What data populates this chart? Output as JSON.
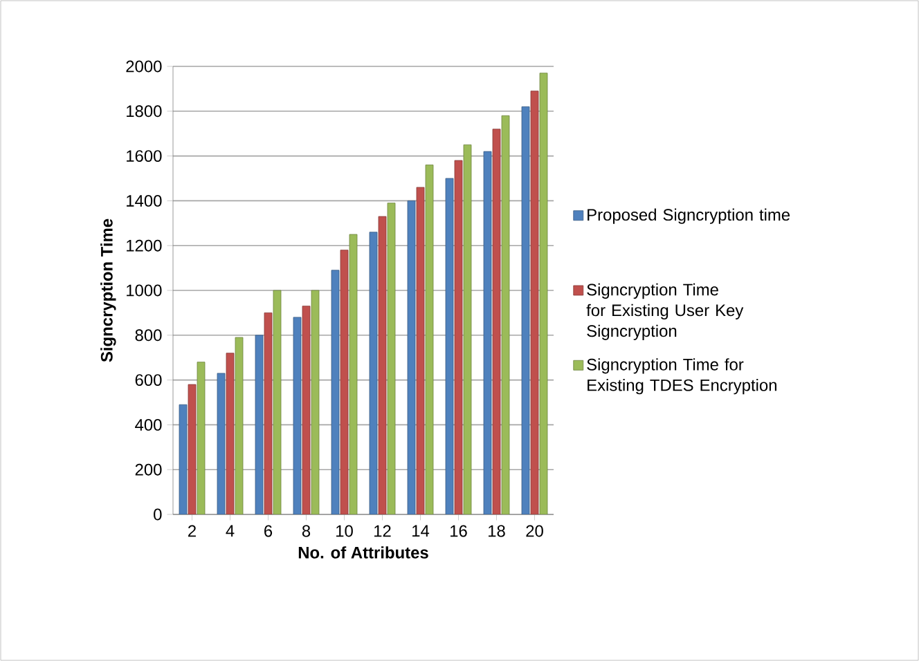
{
  "chart_data": {
    "type": "bar",
    "xlabel": "No. of Attributes",
    "ylabel": "Signcryption Time",
    "categories": [
      "2",
      "4",
      "6",
      "8",
      "10",
      "12",
      "14",
      "16",
      "18",
      "20"
    ],
    "series": [
      {
        "name": "Proposed Signcryption time",
        "color": "#4f81bd",
        "values": [
          490,
          630,
          800,
          880,
          1090,
          1260,
          1400,
          1500,
          1620,
          1820
        ]
      },
      {
        "name": "Signcryption Time for Existing User Key Signcryption",
        "color": "#c0504d",
        "values": [
          580,
          720,
          900,
          930,
          1180,
          1330,
          1460,
          1580,
          1720,
          1890
        ]
      },
      {
        "name": "Signcryption Time for Existing TDES Encryption",
        "color": "#9bbb59",
        "values": [
          680,
          790,
          1000,
          1000,
          1250,
          1390,
          1560,
          1650,
          1780,
          1970
        ]
      }
    ],
    "ylim": [
      0,
      2000
    ],
    "yticks": [
      0,
      200,
      400,
      600,
      800,
      1000,
      1200,
      1400,
      1600,
      1800,
      2000
    ],
    "grid": "y",
    "legend": "right"
  }
}
